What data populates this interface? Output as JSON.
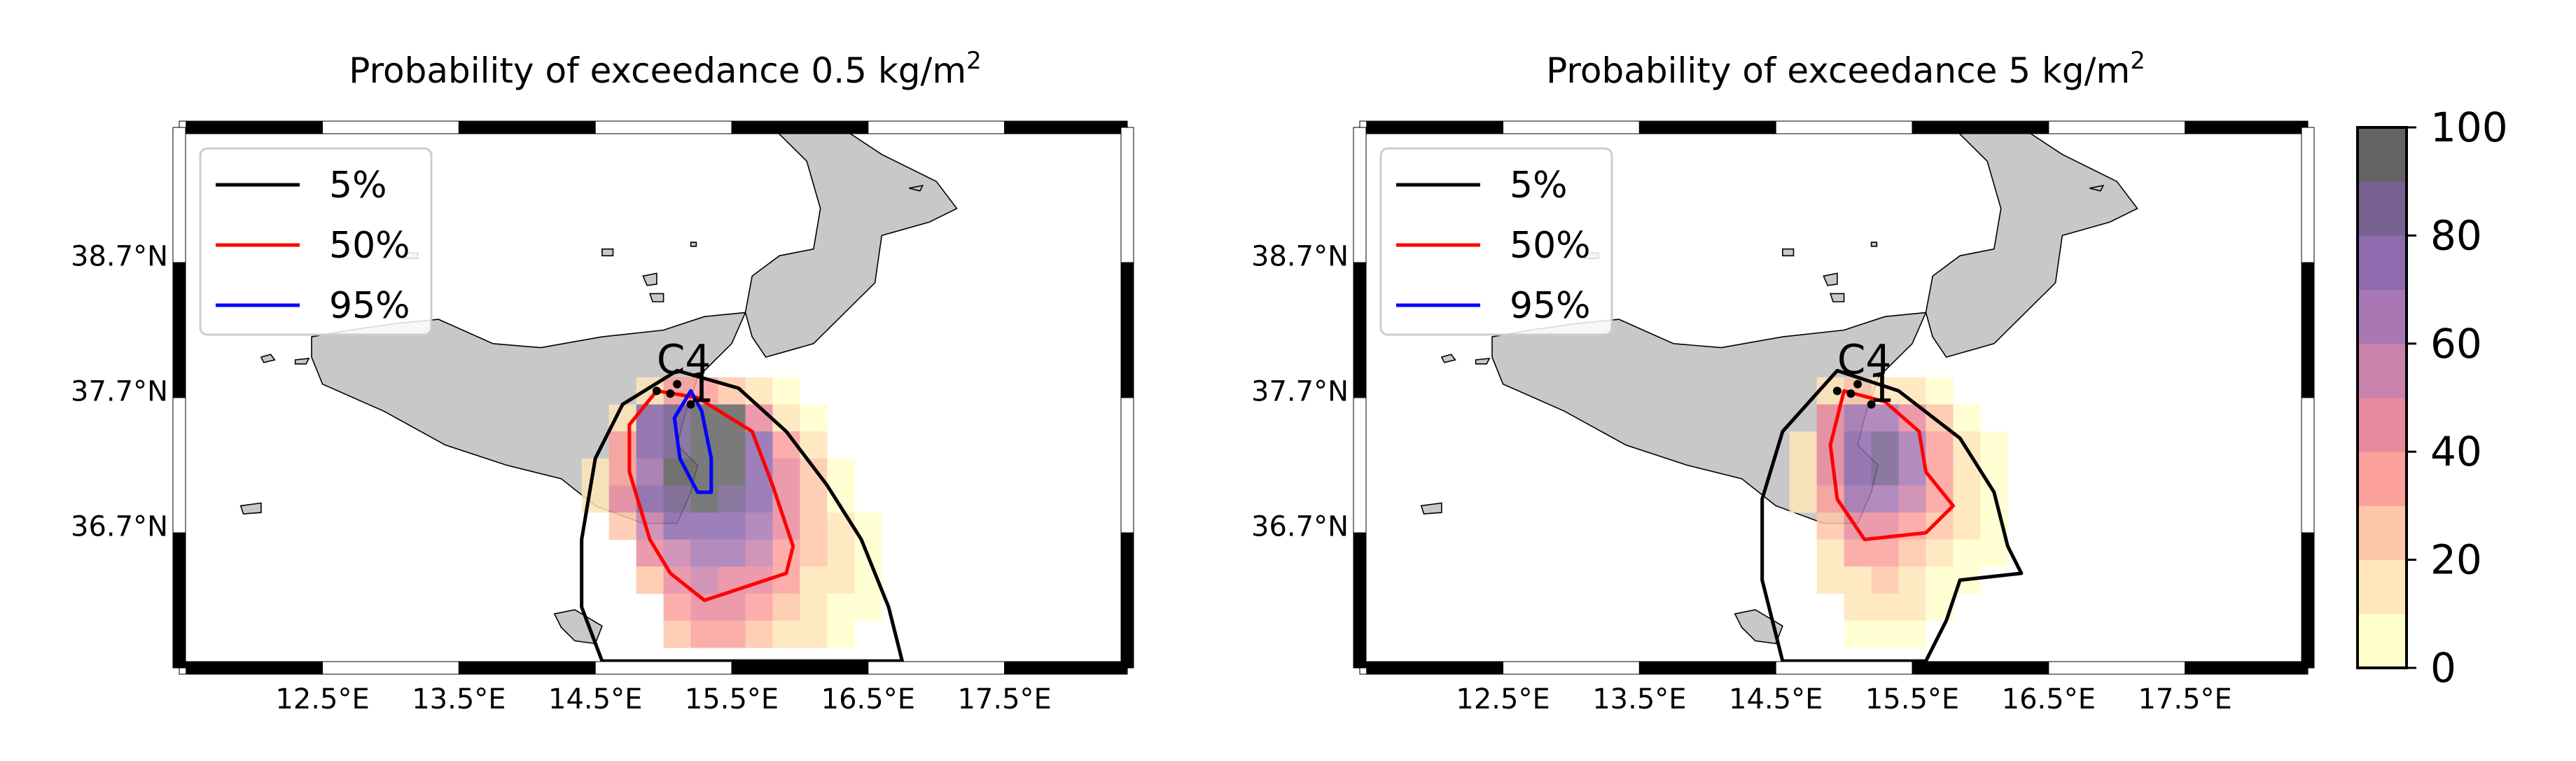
{
  "chart_data": [
    {
      "type": "heatmap",
      "title": "Probability of exceedance 0.5 kg/m",
      "title_sup": "2",
      "x_ticks": [
        "12.5°E",
        "13.5°E",
        "14.5°E",
        "15.5°E",
        "16.5°E",
        "17.5°E"
      ],
      "y_ticks": [
        "38.7°N",
        "37.7°N",
        "36.7°N"
      ],
      "legend": [
        {
          "label": "5%",
          "color": "#000000"
        },
        {
          "label": "50%",
          "color": "#ff0000"
        },
        {
          "label": "95%",
          "color": "#0000ff"
        }
      ],
      "legend_position": "top-left",
      "station_labels": [
        "C4",
        "1"
      ],
      "cells": [
        {
          "lon": 14.9,
          "lat": 37.7,
          "v": 18
        },
        {
          "lon": 15.1,
          "lat": 37.7,
          "v": 35
        },
        {
          "lon": 15.3,
          "lat": 37.7,
          "v": 38
        },
        {
          "lon": 15.5,
          "lat": 37.7,
          "v": 25
        },
        {
          "lon": 15.7,
          "lat": 37.7,
          "v": 10
        },
        {
          "lon": 15.9,
          "lat": 37.7,
          "v": 5
        },
        {
          "lon": 14.7,
          "lat": 37.5,
          "v": 15
        },
        {
          "lon": 14.9,
          "lat": 37.5,
          "v": 72
        },
        {
          "lon": 15.1,
          "lat": 37.5,
          "v": 85
        },
        {
          "lon": 15.3,
          "lat": 37.5,
          "v": 95
        },
        {
          "lon": 15.5,
          "lat": 37.5,
          "v": 92
        },
        {
          "lon": 15.7,
          "lat": 37.5,
          "v": 40
        },
        {
          "lon": 15.9,
          "lat": 37.5,
          "v": 15
        },
        {
          "lon": 16.1,
          "lat": 37.5,
          "v": 8
        },
        {
          "lon": 14.7,
          "lat": 37.3,
          "v": 30
        },
        {
          "lon": 14.9,
          "lat": 37.3,
          "v": 75
        },
        {
          "lon": 15.1,
          "lat": 37.3,
          "v": 88
        },
        {
          "lon": 15.3,
          "lat": 37.3,
          "v": 97
        },
        {
          "lon": 15.5,
          "lat": 37.3,
          "v": 98
        },
        {
          "lon": 15.7,
          "lat": 37.3,
          "v": 72
        },
        {
          "lon": 15.9,
          "lat": 37.3,
          "v": 35
        },
        {
          "lon": 16.1,
          "lat": 37.3,
          "v": 15
        },
        {
          "lon": 14.5,
          "lat": 37.1,
          "v": 10
        },
        {
          "lon": 14.7,
          "lat": 37.1,
          "v": 38
        },
        {
          "lon": 14.9,
          "lat": 37.1,
          "v": 68
        },
        {
          "lon": 15.1,
          "lat": 37.1,
          "v": 90
        },
        {
          "lon": 15.3,
          "lat": 37.1,
          "v": 98
        },
        {
          "lon": 15.5,
          "lat": 37.1,
          "v": 96
        },
        {
          "lon": 15.7,
          "lat": 37.1,
          "v": 75
        },
        {
          "lon": 15.9,
          "lat": 37.1,
          "v": 42
        },
        {
          "lon": 16.1,
          "lat": 37.1,
          "v": 20
        },
        {
          "lon": 16.3,
          "lat": 37.1,
          "v": 5
        },
        {
          "lon": 14.5,
          "lat": 36.9,
          "v": 15
        },
        {
          "lon": 14.7,
          "lat": 36.9,
          "v": 42
        },
        {
          "lon": 14.9,
          "lat": 36.9,
          "v": 70
        },
        {
          "lon": 15.1,
          "lat": 36.9,
          "v": 85
        },
        {
          "lon": 15.3,
          "lat": 36.9,
          "v": 93
        },
        {
          "lon": 15.5,
          "lat": 36.9,
          "v": 88
        },
        {
          "lon": 15.7,
          "lat": 36.9,
          "v": 70
        },
        {
          "lon": 15.9,
          "lat": 36.9,
          "v": 45
        },
        {
          "lon": 16.1,
          "lat": 36.9,
          "v": 22
        },
        {
          "lon": 16.3,
          "lat": 36.9,
          "v": 8
        },
        {
          "lon": 14.7,
          "lat": 36.7,
          "v": 28
        },
        {
          "lon": 14.9,
          "lat": 36.7,
          "v": 58
        },
        {
          "lon": 15.1,
          "lat": 36.7,
          "v": 72
        },
        {
          "lon": 15.3,
          "lat": 36.7,
          "v": 78
        },
        {
          "lon": 15.5,
          "lat": 36.7,
          "v": 75
        },
        {
          "lon": 15.7,
          "lat": 36.7,
          "v": 60
        },
        {
          "lon": 15.9,
          "lat": 36.7,
          "v": 40
        },
        {
          "lon": 16.1,
          "lat": 36.7,
          "v": 25
        },
        {
          "lon": 16.3,
          "lat": 36.7,
          "v": 10
        },
        {
          "lon": 16.5,
          "lat": 36.7,
          "v": 4
        },
        {
          "lon": 14.9,
          "lat": 36.5,
          "v": 42
        },
        {
          "lon": 15.1,
          "lat": 36.5,
          "v": 58
        },
        {
          "lon": 15.3,
          "lat": 36.5,
          "v": 62
        },
        {
          "lon": 15.5,
          "lat": 36.5,
          "v": 60
        },
        {
          "lon": 15.7,
          "lat": 36.5,
          "v": 50
        },
        {
          "lon": 15.9,
          "lat": 36.5,
          "v": 38
        },
        {
          "lon": 16.1,
          "lat": 36.5,
          "v": 22
        },
        {
          "lon": 16.3,
          "lat": 36.5,
          "v": 12
        },
        {
          "lon": 16.5,
          "lat": 36.5,
          "v": 5
        },
        {
          "lon": 14.9,
          "lat": 36.3,
          "v": 28
        },
        {
          "lon": 15.1,
          "lat": 36.3,
          "v": 42
        },
        {
          "lon": 15.3,
          "lat": 36.3,
          "v": 50
        },
        {
          "lon": 15.5,
          "lat": 36.3,
          "v": 48
        },
        {
          "lon": 15.7,
          "lat": 36.3,
          "v": 40
        },
        {
          "lon": 15.9,
          "lat": 36.3,
          "v": 30
        },
        {
          "lon": 16.1,
          "lat": 36.3,
          "v": 18
        },
        {
          "lon": 16.3,
          "lat": 36.3,
          "v": 10
        },
        {
          "lon": 16.5,
          "lat": 36.3,
          "v": 4
        },
        {
          "lon": 15.1,
          "lat": 36.1,
          "v": 32
        },
        {
          "lon": 15.3,
          "lat": 36.1,
          "v": 42
        },
        {
          "lon": 15.5,
          "lat": 36.1,
          "v": 40
        },
        {
          "lon": 15.7,
          "lat": 36.1,
          "v": 33
        },
        {
          "lon": 15.9,
          "lat": 36.1,
          "v": 25
        },
        {
          "lon": 16.1,
          "lat": 36.1,
          "v": 15
        },
        {
          "lon": 16.3,
          "lat": 36.1,
          "v": 8
        },
        {
          "lon": 16.5,
          "lat": 36.1,
          "v": 3
        },
        {
          "lon": 15.1,
          "lat": 35.9,
          "v": 22
        },
        {
          "lon": 15.3,
          "lat": 35.9,
          "v": 30
        },
        {
          "lon": 15.5,
          "lat": 35.9,
          "v": 30
        },
        {
          "lon": 15.7,
          "lat": 35.9,
          "v": 25
        },
        {
          "lon": 15.9,
          "lat": 35.9,
          "v": 18
        },
        {
          "lon": 16.1,
          "lat": 35.9,
          "v": 10
        },
        {
          "lon": 16.3,
          "lat": 35.9,
          "v": 5
        }
      ],
      "contours": [
        {
          "level": "5%",
          "color": "#000000",
          "points": [
            [
              15.1,
              37.85
            ],
            [
              15.55,
              37.72
            ],
            [
              15.9,
              37.4
            ],
            [
              16.2,
              37.0
            ],
            [
              16.45,
              36.6
            ],
            [
              16.65,
              36.1
            ],
            [
              16.75,
              35.7
            ],
            [
              14.55,
              35.7
            ],
            [
              14.4,
              36.1
            ],
            [
              14.4,
              36.6
            ],
            [
              14.5,
              37.2
            ],
            [
              14.7,
              37.6
            ]
          ]
        },
        {
          "level": "50%",
          "color": "#ff0000",
          "points": [
            [
              14.95,
              37.7
            ],
            [
              15.25,
              37.65
            ],
            [
              15.65,
              37.4
            ],
            [
              15.8,
              37.0
            ],
            [
              15.95,
              36.55
            ],
            [
              15.9,
              36.35
            ],
            [
              15.6,
              36.25
            ],
            [
              15.3,
              36.15
            ],
            [
              15.05,
              36.35
            ],
            [
              14.9,
              36.6
            ],
            [
              14.75,
              37.1
            ],
            [
              14.75,
              37.45
            ]
          ]
        },
        {
          "level": "95%",
          "color": "#0000ff",
          "points": [
            [
              15.2,
              37.7
            ],
            [
              15.28,
              37.55
            ],
            [
              15.35,
              37.2
            ],
            [
              15.35,
              36.95
            ],
            [
              15.25,
              36.95
            ],
            [
              15.12,
              37.2
            ],
            [
              15.08,
              37.5
            ]
          ]
        }
      ]
    },
    {
      "type": "heatmap",
      "title": "Probability of exceedance 5 kg/m",
      "title_sup": "2",
      "x_ticks": [
        "12.5°E",
        "13.5°E",
        "14.5°E",
        "15.5°E",
        "16.5°E",
        "17.5°E"
      ],
      "y_ticks": [
        "38.7°N",
        "37.7°N",
        "36.7°N"
      ],
      "legend": [
        {
          "label": "5%",
          "color": "#000000"
        },
        {
          "label": "50%",
          "color": "#ff0000"
        },
        {
          "label": "95%",
          "color": "#0000ff"
        }
      ],
      "legend_position": "top-left",
      "station_labels": [
        "C4",
        "1"
      ],
      "colorbar": {
        "min": 0,
        "max": 100,
        "ticks": [
          "0",
          "20",
          "40",
          "60",
          "80",
          "100"
        ]
      },
      "cells": [
        {
          "lon": 14.9,
          "lat": 37.7,
          "v": 10
        },
        {
          "lon": 15.1,
          "lat": 37.7,
          "v": 20
        },
        {
          "lon": 15.3,
          "lat": 37.7,
          "v": 18
        },
        {
          "lon": 15.5,
          "lat": 37.7,
          "v": 12
        },
        {
          "lon": 15.7,
          "lat": 37.7,
          "v": 4
        },
        {
          "lon": 14.9,
          "lat": 37.5,
          "v": 40
        },
        {
          "lon": 15.1,
          "lat": 37.5,
          "v": 62
        },
        {
          "lon": 15.3,
          "lat": 37.5,
          "v": 65
        },
        {
          "lon": 15.5,
          "lat": 37.5,
          "v": 45
        },
        {
          "lon": 15.7,
          "lat": 37.5,
          "v": 22
        },
        {
          "lon": 15.9,
          "lat": 37.5,
          "v": 8
        },
        {
          "lon": 14.7,
          "lat": 37.3,
          "v": 12
        },
        {
          "lon": 14.9,
          "lat": 37.3,
          "v": 48
        },
        {
          "lon": 15.1,
          "lat": 37.3,
          "v": 75
        },
        {
          "lon": 15.3,
          "lat": 37.3,
          "v": 80
        },
        {
          "lon": 15.5,
          "lat": 37.3,
          "v": 60
        },
        {
          "lon": 15.7,
          "lat": 37.3,
          "v": 32
        },
        {
          "lon": 15.9,
          "lat": 37.3,
          "v": 14
        },
        {
          "lon": 16.1,
          "lat": 37.3,
          "v": 5
        },
        {
          "lon": 14.7,
          "lat": 37.1,
          "v": 15
        },
        {
          "lon": 14.9,
          "lat": 37.1,
          "v": 45
        },
        {
          "lon": 15.1,
          "lat": 37.1,
          "v": 78
        },
        {
          "lon": 15.3,
          "lat": 37.1,
          "v": 88
        },
        {
          "lon": 15.5,
          "lat": 37.1,
          "v": 62
        },
        {
          "lon": 15.7,
          "lat": 37.1,
          "v": 35
        },
        {
          "lon": 15.9,
          "lat": 37.1,
          "v": 15
        },
        {
          "lon": 16.1,
          "lat": 37.1,
          "v": 6
        },
        {
          "lon": 14.7,
          "lat": 36.9,
          "v": 12
        },
        {
          "lon": 14.9,
          "lat": 36.9,
          "v": 38
        },
        {
          "lon": 15.1,
          "lat": 36.9,
          "v": 65
        },
        {
          "lon": 15.3,
          "lat": 36.9,
          "v": 68
        },
        {
          "lon": 15.5,
          "lat": 36.9,
          "v": 52
        },
        {
          "lon": 15.7,
          "lat": 36.9,
          "v": 30
        },
        {
          "lon": 15.9,
          "lat": 36.9,
          "v": 14
        },
        {
          "lon": 16.1,
          "lat": 36.9,
          "v": 6
        },
        {
          "lon": 14.9,
          "lat": 36.7,
          "v": 28
        },
        {
          "lon": 15.1,
          "lat": 36.7,
          "v": 45
        },
        {
          "lon": 15.3,
          "lat": 36.7,
          "v": 48
        },
        {
          "lon": 15.5,
          "lat": 36.7,
          "v": 38
        },
        {
          "lon": 15.7,
          "lat": 36.7,
          "v": 22
        },
        {
          "lon": 15.9,
          "lat": 36.7,
          "v": 12
        },
        {
          "lon": 16.1,
          "lat": 36.7,
          "v": 5
        },
        {
          "lon": 14.9,
          "lat": 36.5,
          "v": 18
        },
        {
          "lon": 15.1,
          "lat": 36.5,
          "v": 30
        },
        {
          "lon": 15.3,
          "lat": 36.5,
          "v": 32
        },
        {
          "lon": 15.5,
          "lat": 36.5,
          "v": 25
        },
        {
          "lon": 15.7,
          "lat": 36.5,
          "v": 15
        },
        {
          "lon": 15.9,
          "lat": 36.5,
          "v": 8
        },
        {
          "lon": 16.1,
          "lat": 36.5,
          "v": 4
        },
        {
          "lon": 14.9,
          "lat": 36.3,
          "v": 10
        },
        {
          "lon": 15.1,
          "lat": 36.3,
          "v": 18
        },
        {
          "lon": 15.3,
          "lat": 36.3,
          "v": 20
        },
        {
          "lon": 15.5,
          "lat": 36.3,
          "v": 15
        },
        {
          "lon": 15.7,
          "lat": 36.3,
          "v": 8
        },
        {
          "lon": 15.9,
          "lat": 36.3,
          "v": 4
        },
        {
          "lon": 15.1,
          "lat": 36.1,
          "v": 12
        },
        {
          "lon": 15.3,
          "lat": 36.1,
          "v": 14
        },
        {
          "lon": 15.5,
          "lat": 36.1,
          "v": 10
        },
        {
          "lon": 15.7,
          "lat": 36.1,
          "v": 5
        },
        {
          "lon": 15.1,
          "lat": 35.9,
          "v": 8
        },
        {
          "lon": 15.3,
          "lat": 35.9,
          "v": 8
        },
        {
          "lon": 15.5,
          "lat": 35.9,
          "v": 5
        }
      ],
      "contours": [
        {
          "level": "5%",
          "color": "#000000",
          "points": [
            [
              14.95,
              37.85
            ],
            [
              15.4,
              37.7
            ],
            [
              15.85,
              37.35
            ],
            [
              16.1,
              36.95
            ],
            [
              16.2,
              36.55
            ],
            [
              16.3,
              36.35
            ],
            [
              15.85,
              36.3
            ],
            [
              15.75,
              36.0
            ],
            [
              15.6,
              35.7
            ],
            [
              14.55,
              35.7
            ],
            [
              14.4,
              36.3
            ],
            [
              14.4,
              36.9
            ],
            [
              14.55,
              37.4
            ]
          ]
        },
        {
          "level": "50%",
          "color": "#ff0000",
          "points": [
            [
              15.0,
              37.7
            ],
            [
              15.3,
              37.62
            ],
            [
              15.55,
              37.4
            ],
            [
              15.6,
              37.1
            ],
            [
              15.8,
              36.85
            ],
            [
              15.6,
              36.65
            ],
            [
              15.15,
              36.6
            ],
            [
              14.95,
              36.9
            ],
            [
              14.9,
              37.3
            ]
          ]
        },
        {
          "level": "95%",
          "color": "#0000ff",
          "points": []
        }
      ]
    }
  ],
  "colormap": [
    "#ffffcc",
    "#ffe6b9",
    "#fec7a9",
    "#fca19c",
    "#e88a9e",
    "#c883ac",
    "#a877b4",
    "#8d6bae",
    "#776291",
    "#636363"
  ]
}
